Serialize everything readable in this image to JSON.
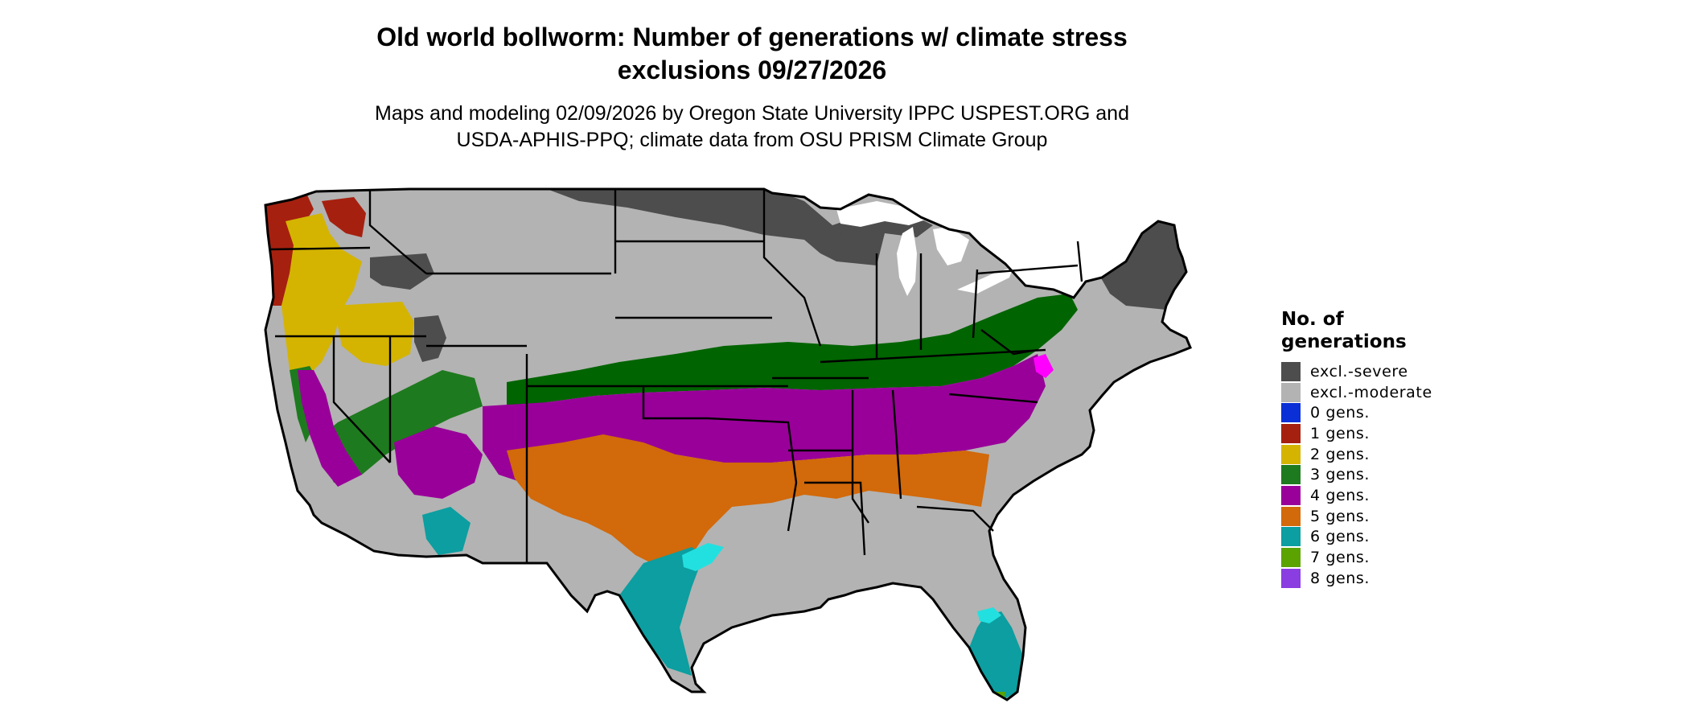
{
  "title": {
    "line1": "Old world bollworm: Number of generations w/ climate stress",
    "line2": "exclusions 09/27/2026"
  },
  "subtitle": {
    "line1": "Maps and modeling 02/09/2026 by Oregon State University IPPC USPEST.ORG and",
    "line2": "USDA-APHIS-PPQ; climate data from OSU PRISM Climate Group"
  },
  "legend": {
    "title_line1": "No. of",
    "title_line2": "generations",
    "items": [
      {
        "label": "excl.-severe",
        "color": "#4d4d4d"
      },
      {
        "label": "excl.-moderate",
        "color": "#b3b3b3"
      },
      {
        "label": "0 gens.",
        "color": "#0a2fd6"
      },
      {
        "label": "1 gens.",
        "color": "#a6200f"
      },
      {
        "label": "2 gens.",
        "color": "#d4b400"
      },
      {
        "label": "3 gens.",
        "color": "#1e7a1e"
      },
      {
        "label": "4 gens.",
        "color": "#990099"
      },
      {
        "label": "5 gens.",
        "color": "#d2690a"
      },
      {
        "label": "6 gens.",
        "color": "#0c9ea0"
      },
      {
        "label": "7 gens.",
        "color": "#5aa300"
      },
      {
        "label": "8 gens.",
        "color": "#8a3de0"
      }
    ]
  },
  "map_colors": {
    "water": "#ffffff",
    "border": "#000000",
    "severe": "#4d4d4d",
    "moderate": "#b3b3b3",
    "g1": "#a6200f",
    "g2": "#d4b400",
    "g3": "#1e7a1e",
    "g3_dark": "#006400",
    "g4": "#990099",
    "g5": "#d2690a",
    "g6": "#0c9ea0",
    "g7": "#5aa300",
    "cyan": "#22e0e0",
    "magenta": "#ff00ff"
  }
}
